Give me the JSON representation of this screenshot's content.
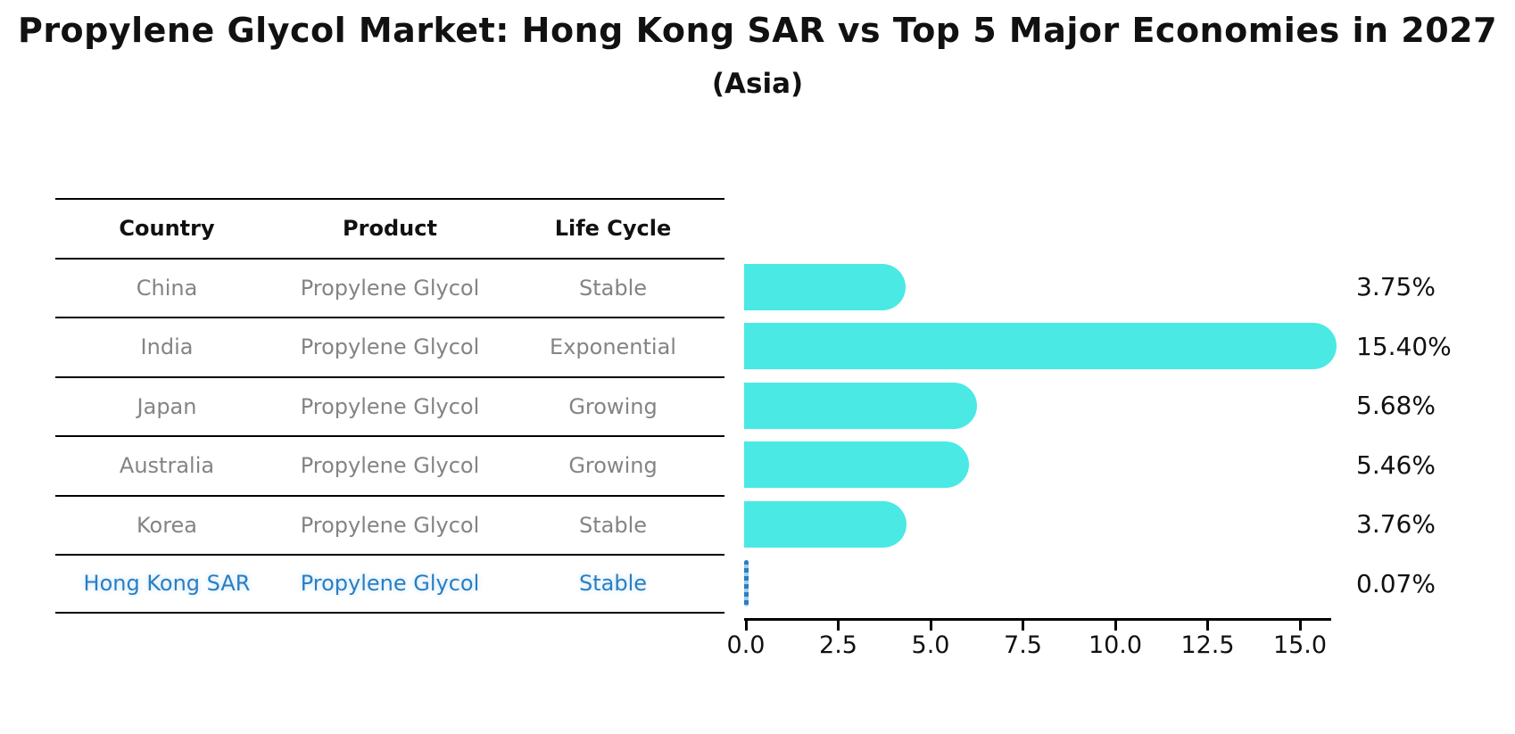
{
  "title": "Propylene Glycol Market: Hong Kong SAR vs Top 5 Major Economies in 2027",
  "subtitle": "(Asia)",
  "table": {
    "columns": [
      "Country",
      "Product",
      "Life Cycle"
    ],
    "rows": [
      {
        "country": "China",
        "product": "Propylene Glycol",
        "life_cycle": "Stable",
        "highlight": false
      },
      {
        "country": "India",
        "product": "Propylene Glycol",
        "life_cycle": "Exponential",
        "highlight": false
      },
      {
        "country": "Japan",
        "product": "Propylene Glycol",
        "life_cycle": "Growing",
        "highlight": false
      },
      {
        "country": "Australia",
        "product": "Propylene Glycol",
        "life_cycle": "Growing",
        "highlight": false
      },
      {
        "country": "Korea",
        "product": "Propylene Glycol",
        "life_cycle": "Stable",
        "highlight": false
      },
      {
        "country": "Hong Kong SAR",
        "product": "Propylene Glycol",
        "life_cycle": "Stable",
        "highlight": true
      }
    ]
  },
  "chart_data": {
    "type": "bar",
    "orientation": "horizontal",
    "title": "Propylene Glycol Market: Hong Kong SAR vs Top 5 Major Economies in 2027",
    "subtitle": "(Asia)",
    "categories": [
      "China",
      "India",
      "Japan",
      "Australia",
      "Korea",
      "Hong Kong SAR"
    ],
    "values": [
      3.75,
      15.4,
      5.68,
      5.46,
      3.76,
      0.07
    ],
    "value_labels": [
      "3.75%",
      "15.40%",
      "5.68%",
      "5.46%",
      "3.76%",
      "0.07%"
    ],
    "x_tick_labels": [
      "0.0",
      "2.5",
      "5.0",
      "7.5",
      "10.0",
      "12.5",
      "15.0"
    ],
    "x_tick_values": [
      0,
      2.5,
      5,
      7.5,
      10,
      12.5,
      15
    ],
    "xlim": [
      0,
      15.9
    ],
    "grid": false,
    "legend": false,
    "bar_color": "#4ae9e4",
    "highlight_color": "#2b7ec1"
  },
  "colors": {
    "background": "#ffffff",
    "bar_cyan": "#4ae9e4",
    "highlight_blue": "#2b7ec1",
    "row_text_gray": "#848484",
    "text_black": "#111111"
  }
}
